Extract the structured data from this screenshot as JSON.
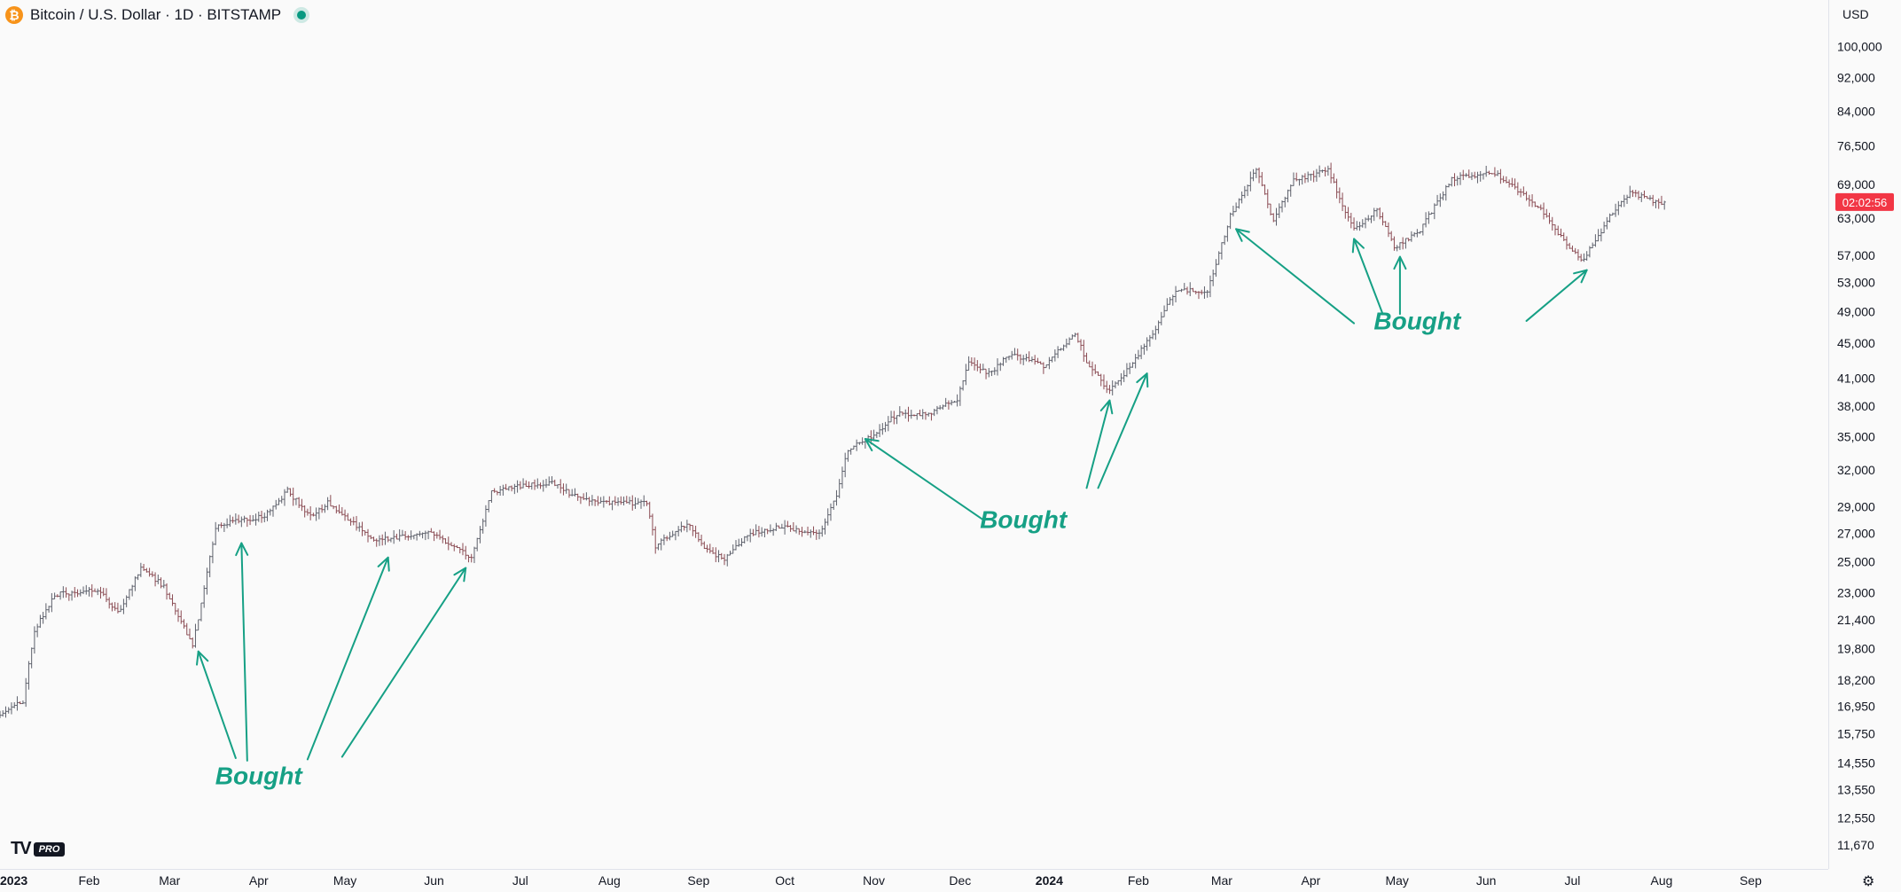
{
  "header": {
    "symbol_title": "Bitcoin / U.S. Dollar · 1D · BITSTAMP",
    "icon": "bitcoin-icon"
  },
  "currency_label": "USD",
  "branding": {
    "logo": "TV",
    "badge": "PRO"
  },
  "settings_icon": "gear-icon",
  "colors": {
    "up": "#089981",
    "down": "#f23645",
    "neutral": "#5d606b",
    "annotation": "#16a085",
    "price_label_bg": "#f23645"
  },
  "chart_data": {
    "type": "ohlc",
    "scale": "log",
    "ylim": [
      11000,
      103000
    ],
    "xlim": [
      "2023-01-01",
      "2024-09-28"
    ],
    "current_price": {
      "value": 65800,
      "countdown": "02:02:56"
    },
    "y_ticks": [
      100000,
      92000,
      84000,
      76500,
      69000,
      63000,
      57000,
      53000,
      49000,
      45000,
      41000,
      38000,
      35000,
      32000,
      29000,
      27000,
      25000,
      23000,
      21400,
      19800,
      18200,
      16950,
      15750,
      14550,
      13550,
      12550,
      11670
    ],
    "x_ticks": [
      {
        "date": "2023-01-01",
        "label": "2023",
        "bold": true
      },
      {
        "date": "2023-02-01",
        "label": "Feb"
      },
      {
        "date": "2023-03-01",
        "label": "Mar"
      },
      {
        "date": "2023-04-01",
        "label": "Apr"
      },
      {
        "date": "2023-05-01",
        "label": "May"
      },
      {
        "date": "2023-06-01",
        "label": "Jun"
      },
      {
        "date": "2023-07-01",
        "label": "Jul"
      },
      {
        "date": "2023-08-01",
        "label": "Aug"
      },
      {
        "date": "2023-09-01",
        "label": "Sep"
      },
      {
        "date": "2023-10-01",
        "label": "Oct"
      },
      {
        "date": "2023-11-01",
        "label": "Nov"
      },
      {
        "date": "2023-12-01",
        "label": "Dec"
      },
      {
        "date": "2024-01-01",
        "label": "2024",
        "bold": true
      },
      {
        "date": "2024-02-01",
        "label": "Feb"
      },
      {
        "date": "2024-03-01",
        "label": "Mar"
      },
      {
        "date": "2024-04-01",
        "label": "Apr"
      },
      {
        "date": "2024-05-01",
        "label": "May"
      },
      {
        "date": "2024-06-01",
        "label": "Jun"
      },
      {
        "date": "2024-07-01",
        "label": "Jul"
      },
      {
        "date": "2024-08-01",
        "label": "Aug"
      },
      {
        "date": "2024-09-01",
        "label": "Sep"
      }
    ],
    "price_path": [
      [
        "2023-01-01",
        16550
      ],
      [
        "2023-01-10",
        17200
      ],
      [
        "2023-01-14",
        20800
      ],
      [
        "2023-01-21",
        22900
      ],
      [
        "2023-02-05",
        23200
      ],
      [
        "2023-02-12",
        21800
      ],
      [
        "2023-02-20",
        24600
      ],
      [
        "2023-02-28",
        23400
      ],
      [
        "2023-03-10",
        20000
      ],
      [
        "2023-03-13",
        22300
      ],
      [
        "2023-03-18",
        27500
      ],
      [
        "2023-03-26",
        28000
      ],
      [
        "2023-04-04",
        28200
      ],
      [
        "2023-04-12",
        30300
      ],
      [
        "2023-04-20",
        28200
      ],
      [
        "2023-04-26",
        29300
      ],
      [
        "2023-05-01",
        28500
      ],
      [
        "2023-05-12",
        26500
      ],
      [
        "2023-05-25",
        26800
      ],
      [
        "2023-06-01",
        27000
      ],
      [
        "2023-06-15",
        25300
      ],
      [
        "2023-06-22",
        30100
      ],
      [
        "2023-07-01",
        30600
      ],
      [
        "2023-07-13",
        31000
      ],
      [
        "2023-07-20",
        29900
      ],
      [
        "2023-08-01",
        29300
      ],
      [
        "2023-08-15",
        29300
      ],
      [
        "2023-08-18",
        26100
      ],
      [
        "2023-08-29",
        27700
      ],
      [
        "2023-09-05",
        25800
      ],
      [
        "2023-09-11",
        25200
      ],
      [
        "2023-09-20",
        27000
      ],
      [
        "2023-10-01",
        27500
      ],
      [
        "2023-10-14",
        26900
      ],
      [
        "2023-10-20",
        29800
      ],
      [
        "2023-10-24",
        33900
      ],
      [
        "2023-11-01",
        35000
      ],
      [
        "2023-11-10",
        37200
      ],
      [
        "2023-11-20",
        37100
      ],
      [
        "2023-12-01",
        38700
      ],
      [
        "2023-12-05",
        43000
      ],
      [
        "2023-12-12",
        41500
      ],
      [
        "2023-12-20",
        43800
      ],
      [
        "2023-12-31",
        42300
      ],
      [
        "2024-01-11",
        46300
      ],
      [
        "2024-01-15",
        42800
      ],
      [
        "2024-01-23",
        39500
      ],
      [
        "2024-02-01",
        43100
      ],
      [
        "2024-02-09",
        47500
      ],
      [
        "2024-02-15",
        52000
      ],
      [
        "2024-02-26",
        51700
      ],
      [
        "2024-03-05",
        63500
      ],
      [
        "2024-03-14",
        72000
      ],
      [
        "2024-03-20",
        62500
      ],
      [
        "2024-03-27",
        69900
      ],
      [
        "2024-04-08",
        71600
      ],
      [
        "2024-04-17",
        61000
      ],
      [
        "2024-04-25",
        64500
      ],
      [
        "2024-05-01",
        58200
      ],
      [
        "2024-05-10",
        61000
      ],
      [
        "2024-05-21",
        70100
      ],
      [
        "2024-06-05",
        71100
      ],
      [
        "2024-06-20",
        65000
      ],
      [
        "2024-07-05",
        56000
      ],
      [
        "2024-07-15",
        63200
      ],
      [
        "2024-07-22",
        67600
      ],
      [
        "2024-07-29",
        66200
      ],
      [
        "2024-08-02",
        65800
      ]
    ],
    "annotations": [
      {
        "text": "Bought",
        "label_at": [
          "2023-04-01",
          13750
        ],
        "arrows": [
          {
            "from": [
              "2023-03-24",
              14750
            ],
            "to": [
              "2023-03-11",
              19650
            ]
          },
          {
            "from": [
              "2023-03-28",
              14650
            ],
            "to": [
              "2023-03-26",
              26300
            ]
          },
          {
            "from": [
              "2023-04-18",
              14700
            ],
            "to": [
              "2023-05-16",
              25300
            ]
          },
          {
            "from": [
              "2023-04-30",
              14800
            ],
            "to": [
              "2023-06-12",
              24600
            ]
          }
        ]
      },
      {
        "text": "Bought",
        "label_at": [
          "2023-12-23",
          27400
        ],
        "arrows": [
          {
            "from": [
              "2023-12-09",
              28000
            ],
            "to": [
              "2023-10-29",
              34800
            ]
          },
          {
            "from": [
              "2024-01-14",
              30500
            ],
            "to": [
              "2024-01-22",
              38600
            ]
          },
          {
            "from": [
              "2024-01-18",
              30500
            ],
            "to": [
              "2024-02-04",
              41500
            ]
          }
        ]
      },
      {
        "text": "Bought",
        "label_at": [
          "2024-05-08",
          46700
        ],
        "arrows": [
          {
            "from": [
              "2024-04-16",
              47500
            ],
            "to": [
              "2024-03-06",
              61200
            ]
          },
          {
            "from": [
              "2024-04-26",
              48700
            ],
            "to": [
              "2024-04-16",
              59600
            ]
          },
          {
            "from": [
              "2024-05-02",
              48700
            ],
            "to": [
              "2024-05-02",
              56800
            ]
          },
          {
            "from": [
              "2024-06-15",
              47800
            ],
            "to": [
              "2024-07-06",
              54800
            ]
          }
        ]
      }
    ]
  }
}
